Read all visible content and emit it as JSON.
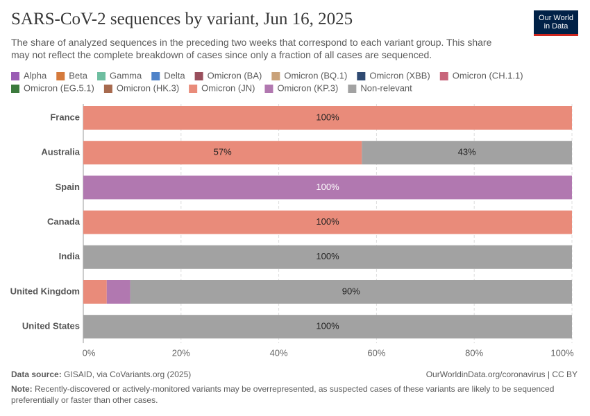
{
  "chart_data": {
    "type": "stacked-bar-horizontal",
    "title": "SARS-CoV-2 sequences by variant, Jun 16, 2025",
    "subtitle": "The share of analyzed sequences in the preceding two weeks that correspond to each variant group. This share may not reflect the complete breakdown of cases since only a fraction of all cases are sequenced.",
    "categories": [
      "France",
      "Australia",
      "Spain",
      "Canada",
      "India",
      "United Kingdom",
      "United States"
    ],
    "series": [
      {
        "name": "Alpha",
        "color": "#9a5db4",
        "values": [
          0,
          0,
          0,
          0,
          0,
          0,
          0
        ]
      },
      {
        "name": "Beta",
        "color": "#d57a3c",
        "values": [
          0,
          0,
          0,
          0,
          0,
          0,
          0
        ]
      },
      {
        "name": "Gamma",
        "color": "#6ebea0",
        "values": [
          0,
          0,
          0,
          0,
          0,
          0,
          0
        ]
      },
      {
        "name": "Delta",
        "color": "#4f83c9",
        "values": [
          0,
          0,
          0,
          0,
          0,
          0,
          0
        ]
      },
      {
        "name": "Omicron (BA)",
        "color": "#994f5d",
        "values": [
          0,
          0,
          0,
          0,
          0,
          0,
          0
        ]
      },
      {
        "name": "Omicron (BQ.1)",
        "color": "#c9a27a",
        "values": [
          0,
          0,
          0,
          0,
          0,
          0,
          0
        ]
      },
      {
        "name": "Omicron (XBB)",
        "color": "#2f4a72",
        "values": [
          0,
          0,
          0,
          0,
          0,
          0,
          0
        ]
      },
      {
        "name": "Omicron (CH.1.1)",
        "color": "#c8657a",
        "values": [
          0,
          0,
          0,
          0,
          0,
          0,
          0
        ]
      },
      {
        "name": "Omicron (EG.5.1)",
        "color": "#3c7a3d",
        "values": [
          0,
          0,
          0,
          0,
          0,
          0,
          0
        ]
      },
      {
        "name": "Omicron (HK.3)",
        "color": "#a76a4e",
        "values": [
          0,
          0,
          0,
          0,
          0,
          0,
          0
        ]
      },
      {
        "name": "Omicron (JN)",
        "color": "#e98b7a",
        "values": [
          100,
          57,
          0,
          100,
          0,
          4.8,
          0
        ],
        "value_labels": [
          "100%",
          "57%",
          null,
          "100%",
          null,
          null,
          null
        ]
      },
      {
        "name": "Omicron (KP.3)",
        "color": "#b178b0",
        "values": [
          0,
          0,
          100,
          0,
          0,
          4.8,
          0
        ],
        "value_labels": [
          null,
          null,
          "100%",
          null,
          null,
          null,
          null
        ]
      },
      {
        "name": "Non-relevant",
        "color": "#a2a2a2",
        "values": [
          0,
          43,
          0,
          0,
          100,
          90.4,
          100
        ],
        "value_labels": [
          null,
          "43%",
          null,
          null,
          "100%",
          "90%",
          "100%"
        ]
      }
    ],
    "xlim": [
      0,
      100
    ],
    "xticks": [
      {
        "value": 0,
        "label": "0%"
      },
      {
        "value": 20,
        "label": "20%"
      },
      {
        "value": 40,
        "label": "40%"
      },
      {
        "value": 60,
        "label": "60%"
      },
      {
        "value": 80,
        "label": "80%"
      },
      {
        "value": 100,
        "label": "100%"
      }
    ],
    "grid": true
  },
  "logo": {
    "line1": "Our World",
    "line2": "in Data"
  },
  "footer": {
    "source_label": "Data source:",
    "source": "GISAID, via CoVariants.org (2025)",
    "url": "OurWorldinData.org/coronavirus | CC BY",
    "note_label": "Note:",
    "note": "Recently-discovered or actively-monitored variants may be overrepresented, as suspected cases of these variants are likely to be sequenced preferentially or faster than other cases."
  }
}
